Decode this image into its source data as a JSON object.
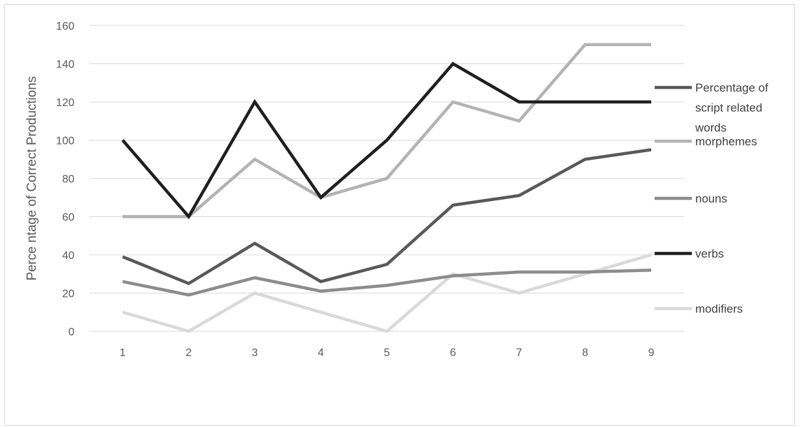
{
  "chart_data": {
    "type": "line",
    "categories": [
      "1",
      "2",
      "3",
      "4",
      "5",
      "6",
      "7",
      "8",
      "9"
    ],
    "ylabel": "Perce ntage of Correct Productions",
    "ylim": [
      0,
      160
    ],
    "yticks": [
      "0",
      "20",
      "40",
      "60",
      "80",
      "100",
      "120",
      "140",
      "160"
    ],
    "grid": "horizontal",
    "legend_position": "right",
    "series": [
      {
        "name": "Percentage of script related words",
        "name_lines": [
          "Percentage of",
          "script related",
          "words"
        ],
        "color": "#595959",
        "values": [
          39,
          25,
          46,
          26,
          35,
          66,
          71,
          90,
          95
        ]
      },
      {
        "name": "morphemes",
        "name_lines": [
          "morphemes"
        ],
        "color": "#b3b3b3",
        "values": [
          60,
          60,
          90,
          70,
          80,
          120,
          110,
          150,
          150
        ]
      },
      {
        "name": "nouns",
        "name_lines": [
          "nouns"
        ],
        "color": "#8c8c8c",
        "values": [
          26,
          19,
          28,
          21,
          24,
          29,
          31,
          31,
          32
        ]
      },
      {
        "name": "verbs",
        "name_lines": [
          "verbs"
        ],
        "color": "#1f1f1f",
        "values": [
          100,
          60,
          120,
          70,
          100,
          140,
          120,
          120,
          120
        ]
      },
      {
        "name": "modifiers",
        "name_lines": [
          "modifiers"
        ],
        "color": "#d9d9d9",
        "values": [
          10,
          0,
          20,
          10,
          0,
          30,
          20,
          30,
          40
        ]
      }
    ]
  }
}
